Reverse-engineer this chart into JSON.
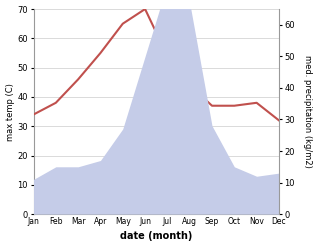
{
  "months": [
    "Jan",
    "Feb",
    "Mar",
    "Apr",
    "May",
    "Jun",
    "Jul",
    "Aug",
    "Sep",
    "Oct",
    "Nov",
    "Dec"
  ],
  "temp": [
    34,
    38,
    46,
    55,
    65,
    70,
    54,
    44,
    37,
    37,
    38,
    32
  ],
  "precip": [
    11,
    15,
    15,
    17,
    27,
    50,
    73,
    67,
    28,
    15,
    12,
    13
  ],
  "temp_color": "#c0504d",
  "precip_fill_color": "#c5cce8",
  "precip_fill_alpha": 1.0,
  "ylabel_left": "max temp (C)",
  "ylabel_right": "med. precipitation (kg/m2)",
  "xlabel": "date (month)",
  "ylim_left": [
    0,
    70
  ],
  "ylim_right": [
    0,
    65
  ],
  "yticks_left": [
    0,
    10,
    20,
    30,
    40,
    50,
    60,
    70
  ],
  "yticks_right": [
    0,
    10,
    20,
    30,
    40,
    50,
    60
  ],
  "background_color": "#ffffff",
  "temp_linewidth": 1.5,
  "ylabel_fontsize": 6,
  "xlabel_fontsize": 7,
  "tick_fontsize": 6,
  "xtick_fontsize": 5.5
}
